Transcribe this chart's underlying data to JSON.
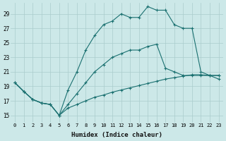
{
  "xlabel": "Humidex (Indice chaleur)",
  "bg_color": "#cce8e8",
  "grid_color": "#aacccc",
  "line_color": "#1a7070",
  "xlim": [
    -0.5,
    23.5
  ],
  "ylim": [
    14.0,
    30.5
  ],
  "yticks": [
    15,
    17,
    19,
    21,
    23,
    25,
    27,
    29
  ],
  "xticks": [
    0,
    1,
    2,
    3,
    4,
    5,
    6,
    7,
    8,
    9,
    10,
    11,
    12,
    13,
    14,
    15,
    16,
    17,
    18,
    19,
    20,
    21,
    22,
    23
  ],
  "series_top_x": [
    0,
    1,
    2,
    3,
    4,
    5,
    6,
    7,
    8,
    9,
    10,
    11,
    12,
    13,
    14,
    15,
    16,
    17,
    18,
    19,
    20,
    21,
    22,
    23
  ],
  "series_top_y": [
    19.5,
    18.3,
    17.2,
    16.7,
    16.5,
    15.0,
    18.5,
    21.0,
    24.0,
    26.0,
    27.5,
    28.0,
    29.0,
    28.5,
    28.5,
    30.0,
    29.5,
    29.5,
    27.5,
    27.0,
    27.0,
    21.0,
    20.5,
    20.0
  ],
  "series_mid_x": [
    0,
    1,
    2,
    3,
    4,
    5,
    6,
    7,
    8,
    9,
    10,
    11,
    12,
    13,
    14,
    15,
    16,
    17,
    18,
    19,
    20,
    21,
    22,
    23
  ],
  "series_mid_y": [
    19.5,
    18.3,
    17.2,
    16.7,
    16.5,
    15.0,
    16.5,
    18.0,
    19.5,
    21.0,
    22.0,
    23.0,
    23.5,
    24.0,
    24.0,
    24.5,
    24.8,
    21.5,
    21.0,
    20.5,
    20.5,
    20.5,
    20.5,
    20.5
  ],
  "series_bot_x": [
    0,
    1,
    2,
    3,
    4,
    5,
    6,
    7,
    8,
    9,
    10,
    11,
    12,
    13,
    14,
    15,
    16,
    17,
    18,
    19,
    20,
    21,
    22,
    23
  ],
  "series_bot_y": [
    19.5,
    18.3,
    17.2,
    16.7,
    16.5,
    15.0,
    16.0,
    16.5,
    17.0,
    17.5,
    17.8,
    18.2,
    18.5,
    18.8,
    19.1,
    19.4,
    19.7,
    20.0,
    20.2,
    20.4,
    20.6,
    20.6,
    20.5,
    20.5
  ]
}
